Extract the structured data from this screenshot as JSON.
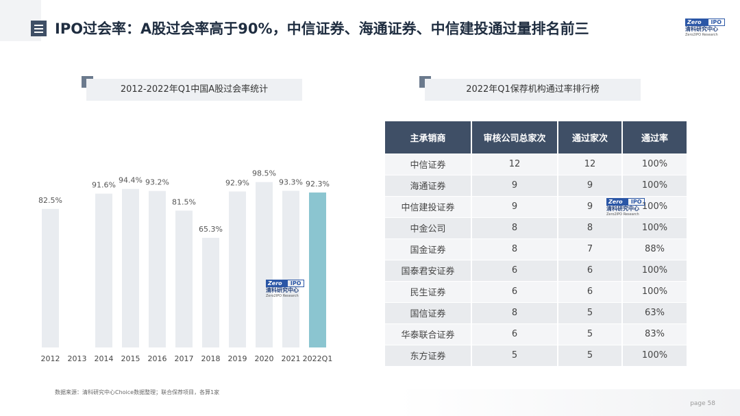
{
  "header": {
    "title": "IPO过会率：A股过会率高于90%，中信证券、海通证券、中信建投通过量排名前三",
    "menu_icon": "list-icon"
  },
  "logo": {
    "box_left": "Zero",
    "box_right": "IPO",
    "cn": "清科研究中心",
    "en": "Zero2IPO Research"
  },
  "left_section": {
    "title": "2012-2022年Q1中国A股过会率统计"
  },
  "right_section": {
    "title": "2022年Q1保荐机构通过率排行榜"
  },
  "chart_data": {
    "type": "bar",
    "categories": [
      "2012",
      "2013",
      "2014",
      "2015",
      "2016",
      "2017",
      "2018",
      "2019",
      "2020",
      "2021",
      "2022Q1"
    ],
    "values": [
      82.5,
      null,
      91.6,
      94.4,
      93.2,
      81.5,
      65.3,
      92.9,
      98.5,
      93.3,
      92.3
    ],
    "labels": [
      "82.5%",
      "",
      "91.6%",
      "94.4%",
      "93.2%",
      "81.5%",
      "65.3%",
      "92.9%",
      "98.5%",
      "93.3%",
      "92.3%"
    ],
    "ylim": [
      0,
      100
    ],
    "colors": {
      "default": "#e9ecf0",
      "highlight": "#8bc5d0"
    },
    "highlight_index": 10,
    "grid": false,
    "legend": "none"
  },
  "table": {
    "headers": [
      "主承销商",
      "审核公司总家次",
      "通过家次",
      "通过率"
    ],
    "rows": [
      [
        "中信证券",
        "12",
        "12",
        "100%"
      ],
      [
        "海通证券",
        "9",
        "9",
        "100%"
      ],
      [
        "中信建投证券",
        "9",
        "9",
        "100%"
      ],
      [
        "中金公司",
        "8",
        "8",
        "100%"
      ],
      [
        "国金证券",
        "8",
        "7",
        "88%"
      ],
      [
        "国泰君安证券",
        "6",
        "6",
        "100%"
      ],
      [
        "民生证券",
        "6",
        "6",
        "100%"
      ],
      [
        "国信证券",
        "8",
        "5",
        "63%"
      ],
      [
        "华泰联合证券",
        "6",
        "5",
        "83%"
      ],
      [
        "东方证券",
        "5",
        "5",
        "100%"
      ]
    ]
  },
  "footer": {
    "source": "数据来源：清科研究中心Choice数据整理；联合保荐项目，各算1家",
    "page": "page  58"
  },
  "colors": {
    "title_dark": "#1f2d40",
    "header_bg": "#3f4f66",
    "accent_teal": "#8bc5d0"
  }
}
